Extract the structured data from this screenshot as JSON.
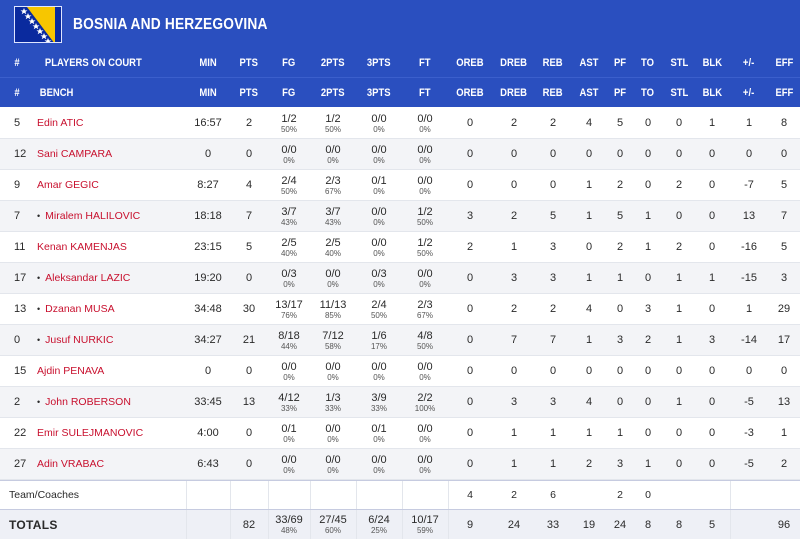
{
  "team": {
    "name": "BOSNIA AND HERZEGOVINA",
    "flag_colors": {
      "blue": "#0a2a9e",
      "yellow": "#f7c600",
      "star": "#ffffff"
    }
  },
  "colors": {
    "header_bg": "#2a4fbf",
    "player_name": "#c8102e"
  },
  "header": {
    "row1": [
      "#",
      "PLAYERS ON COURT",
      "MIN",
      "PTS",
      "FG",
      "2PTS",
      "3PTS",
      "FT",
      "OREB",
      "DREB",
      "REB",
      "AST",
      "PF",
      "TO",
      "STL",
      "BLK",
      "+/-",
      "EFF"
    ],
    "row2": [
      "#",
      "BENCH",
      "MIN",
      "PTS",
      "FG",
      "2PTS",
      "3PTS",
      "FT",
      "OREB",
      "DREB",
      "REB",
      "AST",
      "PF",
      "TO",
      "STL",
      "BLK",
      "+/-",
      "EFF"
    ]
  },
  "players": [
    {
      "num": "5",
      "starter": false,
      "name": "Edin ATIC",
      "min": "16:57",
      "pts": "2",
      "fg": "1/2",
      "fg_pct": "50%",
      "p2": "1/2",
      "p2_pct": "50%",
      "p3": "0/0",
      "p3_pct": "0%",
      "ft": "0/0",
      "ft_pct": "0%",
      "oreb": "0",
      "dreb": "2",
      "reb": "2",
      "ast": "4",
      "pf": "5",
      "to": "0",
      "stl": "0",
      "blk": "1",
      "pm": "1",
      "eff": "8"
    },
    {
      "num": "12",
      "starter": false,
      "name": "Sani CAMPARA",
      "min": "0",
      "pts": "0",
      "fg": "0/0",
      "fg_pct": "0%",
      "p2": "0/0",
      "p2_pct": "0%",
      "p3": "0/0",
      "p3_pct": "0%",
      "ft": "0/0",
      "ft_pct": "0%",
      "oreb": "0",
      "dreb": "0",
      "reb": "0",
      "ast": "0",
      "pf": "0",
      "to": "0",
      "stl": "0",
      "blk": "0",
      "pm": "0",
      "eff": "0"
    },
    {
      "num": "9",
      "starter": false,
      "name": "Amar GEGIC",
      "min": "8:27",
      "pts": "4",
      "fg": "2/4",
      "fg_pct": "50%",
      "p2": "2/3",
      "p2_pct": "67%",
      "p3": "0/1",
      "p3_pct": "0%",
      "ft": "0/0",
      "ft_pct": "0%",
      "oreb": "0",
      "dreb": "0",
      "reb": "0",
      "ast": "1",
      "pf": "2",
      "to": "0",
      "stl": "2",
      "blk": "0",
      "pm": "-7",
      "eff": "5"
    },
    {
      "num": "7",
      "starter": true,
      "name": "Miralem HALILOVIC",
      "min": "18:18",
      "pts": "7",
      "fg": "3/7",
      "fg_pct": "43%",
      "p2": "3/7",
      "p2_pct": "43%",
      "p3": "0/0",
      "p3_pct": "0%",
      "ft": "1/2",
      "ft_pct": "50%",
      "oreb": "3",
      "dreb": "2",
      "reb": "5",
      "ast": "1",
      "pf": "5",
      "to": "1",
      "stl": "0",
      "blk": "0",
      "pm": "13",
      "eff": "7"
    },
    {
      "num": "11",
      "starter": false,
      "name": "Kenan KAMENJAS",
      "min": "23:15",
      "pts": "5",
      "fg": "2/5",
      "fg_pct": "40%",
      "p2": "2/5",
      "p2_pct": "40%",
      "p3": "0/0",
      "p3_pct": "0%",
      "ft": "1/2",
      "ft_pct": "50%",
      "oreb": "2",
      "dreb": "1",
      "reb": "3",
      "ast": "0",
      "pf": "2",
      "to": "1",
      "stl": "2",
      "blk": "0",
      "pm": "-16",
      "eff": "5"
    },
    {
      "num": "17",
      "starter": true,
      "name": "Aleksandar LAZIC",
      "min": "19:20",
      "pts": "0",
      "fg": "0/3",
      "fg_pct": "0%",
      "p2": "0/0",
      "p2_pct": "0%",
      "p3": "0/3",
      "p3_pct": "0%",
      "ft": "0/0",
      "ft_pct": "0%",
      "oreb": "0",
      "dreb": "3",
      "reb": "3",
      "ast": "1",
      "pf": "1",
      "to": "0",
      "stl": "1",
      "blk": "1",
      "pm": "-15",
      "eff": "3"
    },
    {
      "num": "13",
      "starter": true,
      "name": "Dzanan MUSA",
      "min": "34:48",
      "pts": "30",
      "fg": "13/17",
      "fg_pct": "76%",
      "p2": "11/13",
      "p2_pct": "85%",
      "p3": "2/4",
      "p3_pct": "50%",
      "ft": "2/3",
      "ft_pct": "67%",
      "oreb": "0",
      "dreb": "2",
      "reb": "2",
      "ast": "4",
      "pf": "0",
      "to": "3",
      "stl": "1",
      "blk": "0",
      "pm": "1",
      "eff": "29"
    },
    {
      "num": "0",
      "starter": true,
      "name": "Jusuf NURKIC",
      "min": "34:27",
      "pts": "21",
      "fg": "8/18",
      "fg_pct": "44%",
      "p2": "7/12",
      "p2_pct": "58%",
      "p3": "1/6",
      "p3_pct": "17%",
      "ft": "4/8",
      "ft_pct": "50%",
      "oreb": "0",
      "dreb": "7",
      "reb": "7",
      "ast": "1",
      "pf": "3",
      "to": "2",
      "stl": "1",
      "blk": "3",
      "pm": "-14",
      "eff": "17"
    },
    {
      "num": "15",
      "starter": false,
      "name": "Ajdin PENAVA",
      "min": "0",
      "pts": "0",
      "fg": "0/0",
      "fg_pct": "0%",
      "p2": "0/0",
      "p2_pct": "0%",
      "p3": "0/0",
      "p3_pct": "0%",
      "ft": "0/0",
      "ft_pct": "0%",
      "oreb": "0",
      "dreb": "0",
      "reb": "0",
      "ast": "0",
      "pf": "0",
      "to": "0",
      "stl": "0",
      "blk": "0",
      "pm": "0",
      "eff": "0"
    },
    {
      "num": "2",
      "starter": true,
      "name": "John ROBERSON",
      "min": "33:45",
      "pts": "13",
      "fg": "4/12",
      "fg_pct": "33%",
      "p2": "1/3",
      "p2_pct": "33%",
      "p3": "3/9",
      "p3_pct": "33%",
      "ft": "2/2",
      "ft_pct": "100%",
      "oreb": "0",
      "dreb": "3",
      "reb": "3",
      "ast": "4",
      "pf": "0",
      "to": "0",
      "stl": "1",
      "blk": "0",
      "pm": "-5",
      "eff": "13"
    },
    {
      "num": "22",
      "starter": false,
      "name": "Emir SULEJMANOVIC",
      "min": "4:00",
      "pts": "0",
      "fg": "0/1",
      "fg_pct": "0%",
      "p2": "0/0",
      "p2_pct": "0%",
      "p3": "0/1",
      "p3_pct": "0%",
      "ft": "0/0",
      "ft_pct": "0%",
      "oreb": "0",
      "dreb": "1",
      "reb": "1",
      "ast": "1",
      "pf": "1",
      "to": "0",
      "stl": "0",
      "blk": "0",
      "pm": "-3",
      "eff": "1"
    },
    {
      "num": "27",
      "starter": false,
      "name": "Adin VRABAC",
      "min": "6:43",
      "pts": "0",
      "fg": "0/0",
      "fg_pct": "0%",
      "p2": "0/0",
      "p2_pct": "0%",
      "p3": "0/0",
      "p3_pct": "0%",
      "ft": "0/0",
      "ft_pct": "0%",
      "oreb": "0",
      "dreb": "1",
      "reb": "1",
      "ast": "2",
      "pf": "3",
      "to": "1",
      "stl": "0",
      "blk": "0",
      "pm": "-5",
      "eff": "2"
    }
  ],
  "team_coaches": {
    "label": "Team/Coaches",
    "oreb": "4",
    "dreb": "2",
    "reb": "6",
    "pf": "2",
    "to": "0"
  },
  "totals": {
    "label": "TOTALS",
    "pts": "82",
    "fg": "33/69",
    "fg_pct": "48%",
    "p2": "27/45",
    "p2_pct": "60%",
    "p3": "6/24",
    "p3_pct": "25%",
    "ft": "10/17",
    "ft_pct": "59%",
    "oreb": "9",
    "dreb": "24",
    "reb": "33",
    "ast": "19",
    "pf": "24",
    "to": "8",
    "stl": "8",
    "blk": "5",
    "pm": "",
    "eff": "96"
  }
}
